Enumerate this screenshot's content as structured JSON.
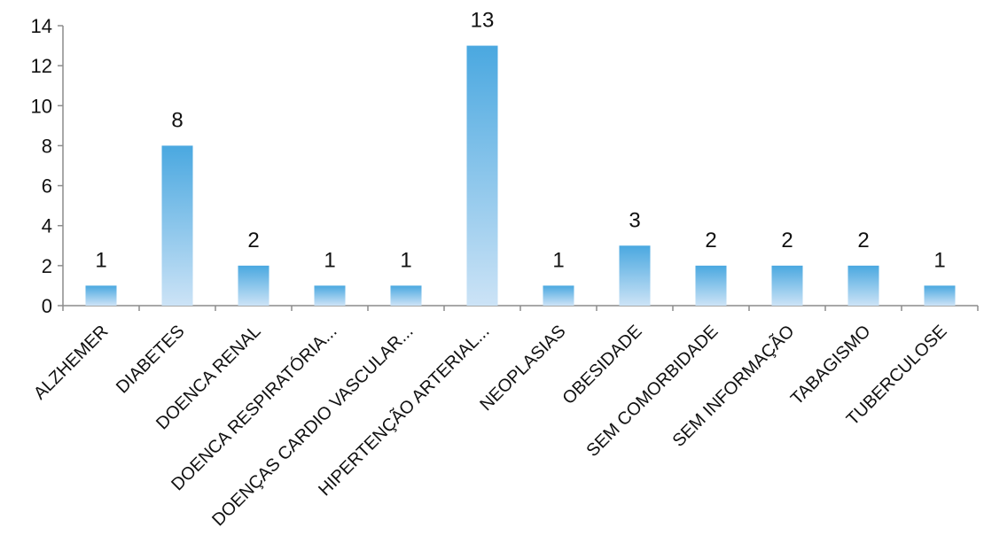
{
  "chart_data": {
    "type": "bar",
    "categories": [
      "ALZHEMER",
      "DIABETES",
      "DOENCA RENAL",
      "DOENCA RESPIRATÓRIA...",
      "DOENÇAS CARDIO VASCULAR...",
      "HIPERTENÇÃO ARTERIAL...",
      "NEOPLASIAS",
      "OBESIDADE",
      "SEM COMORBIDADE",
      "SEM INFORMAÇÃO",
      "TABAGISMO",
      "TUBERCULOSE"
    ],
    "values": [
      1,
      8,
      2,
      1,
      1,
      13,
      1,
      3,
      2,
      2,
      2,
      1
    ],
    "ylim": [
      0,
      14
    ],
    "yticks": [
      0,
      2,
      4,
      6,
      8,
      10,
      12,
      14
    ],
    "grid": false,
    "legend": "none",
    "data_labels": true,
    "colors": {
      "bar_top": "#4aa8e0",
      "bar_bottom": "#cce3f6",
      "axis": "#8c8c8c"
    }
  }
}
